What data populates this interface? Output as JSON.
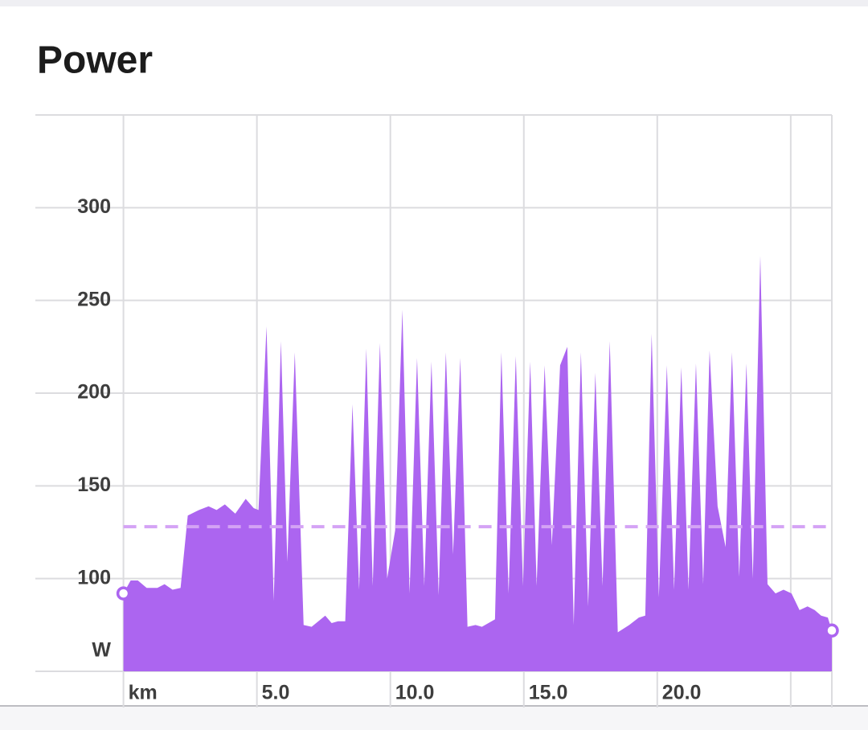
{
  "chart_data": {
    "type": "area",
    "title": "Power",
    "y_unit": "W",
    "color": "#ac65f0",
    "average": 128,
    "average_color": "#d4a3f5",
    "grid": true,
    "xlim": [
      -3.3,
      26.54
    ],
    "ylim": [
      50,
      350
    ],
    "yticks": [
      100,
      150,
      200,
      250,
      300
    ],
    "xticks": [
      {
        "value": 0,
        "label": "km"
      },
      {
        "value": 5,
        "label": "5.0"
      },
      {
        "value": 10,
        "label": "10.0"
      },
      {
        "value": 15,
        "label": "15.0"
      },
      {
        "value": 20,
        "label": "20.0"
      }
    ],
    "xgrid": [
      0,
      5,
      10,
      15,
      20,
      25
    ],
    "x": [
      0,
      0.27,
      0.54,
      0.87,
      1.27,
      1.54,
      1.84,
      2.14,
      2.41,
      2.83,
      3.19,
      3.49,
      3.8,
      4.19,
      4.58,
      4.88,
      5.06,
      5.36,
      5.63,
      5.9,
      6.14,
      6.42,
      6.75,
      7.05,
      7.56,
      7.8,
      8.04,
      8.31,
      8.58,
      8.83,
      9.1,
      9.34,
      9.61,
      9.88,
      10.18,
      10.45,
      10.72,
      11.0,
      11.27,
      11.54,
      11.81,
      12.08,
      12.35,
      12.62,
      12.89,
      13.19,
      13.43,
      13.92,
      14.16,
      14.43,
      14.7,
      14.97,
      15.24,
      15.48,
      15.78,
      16.05,
      16.36,
      16.63,
      16.87,
      17.14,
      17.41,
      17.68,
      17.95,
      18.22,
      18.52,
      18.95,
      19.31,
      19.55,
      19.79,
      20.06,
      20.36,
      20.63,
      20.9,
      21.17,
      21.45,
      21.72,
      21.96,
      22.26,
      22.56,
      22.8,
      23.07,
      23.34,
      23.58,
      23.86,
      24.13,
      24.43,
      24.73,
      25.03,
      25.33,
      25.63,
      25.9,
      26.14,
      26.39,
      26.54
    ],
    "values": [
      92,
      99,
      99,
      95,
      95,
      97,
      94,
      95,
      134,
      137,
      139,
      137,
      140,
      135,
      143,
      138,
      137,
      236,
      88,
      228,
      109,
      222,
      75,
      74,
      80,
      76,
      77,
      77,
      194,
      94,
      224,
      96,
      227,
      100,
      126,
      245,
      92,
      219,
      96,
      217,
      91,
      222,
      113,
      219,
      74,
      75,
      74,
      78,
      222,
      92,
      220,
      96,
      217,
      96,
      215,
      118,
      215,
      225,
      75,
      222,
      85,
      211,
      96,
      228,
      71,
      75,
      79,
      80,
      232,
      90,
      215,
      94,
      214,
      94,
      216,
      97,
      223,
      139,
      117,
      222,
      101,
      216,
      100,
      274,
      97,
      92,
      94,
      92,
      83,
      85,
      83,
      80,
      79,
      72
    ]
  }
}
